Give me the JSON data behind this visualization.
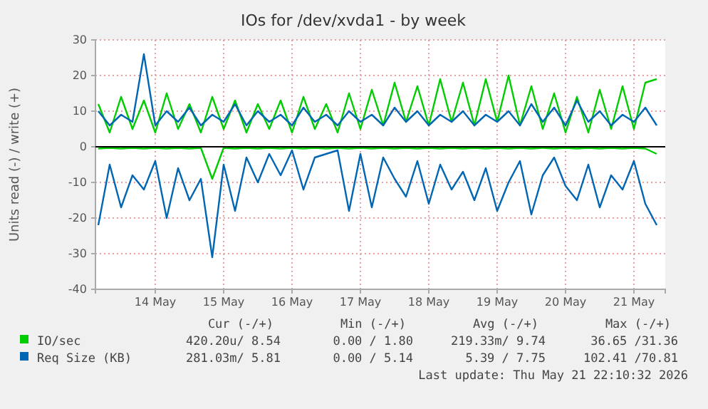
{
  "chart_data": {
    "type": "line",
    "title": "IOs for /dev/xvda1 - by week",
    "ylabel": "Units read (-) / write (+)",
    "x": [
      "2026-05-13T16:00",
      "2026-05-13T20:00",
      "2026-05-14T00:00",
      "2026-05-14T04:00",
      "2026-05-14T08:00",
      "2026-05-14T12:00",
      "2026-05-14T16:00",
      "2026-05-14T20:00",
      "2026-05-15T00:00",
      "2026-05-15T04:00",
      "2026-05-15T08:00",
      "2026-05-15T12:00",
      "2026-05-15T16:00",
      "2026-05-15T20:00",
      "2026-05-16T00:00",
      "2026-05-16T04:00",
      "2026-05-16T08:00",
      "2026-05-16T12:00",
      "2026-05-16T16:00",
      "2026-05-16T20:00",
      "2026-05-17T00:00",
      "2026-05-17T04:00",
      "2026-05-17T08:00",
      "2026-05-17T12:00",
      "2026-05-17T16:00",
      "2026-05-17T20:00",
      "2026-05-18T00:00",
      "2026-05-18T04:00",
      "2026-05-18T08:00",
      "2026-05-18T12:00",
      "2026-05-18T16:00",
      "2026-05-18T20:00",
      "2026-05-19T00:00",
      "2026-05-19T04:00",
      "2026-05-19T08:00",
      "2026-05-19T12:00",
      "2026-05-19T16:00",
      "2026-05-19T20:00",
      "2026-05-20T00:00",
      "2026-05-20T04:00",
      "2026-05-20T08:00",
      "2026-05-20T12:00",
      "2026-05-20T16:00",
      "2026-05-20T20:00",
      "2026-05-21T00:00",
      "2026-05-21T04:00",
      "2026-05-21T08:00",
      "2026-05-21T12:00",
      "2026-05-21T16:00",
      "2026-05-21T20:00"
    ],
    "series": [
      {
        "name": "IO/sec",
        "color": "#00cc00",
        "values": [
          12,
          4,
          14,
          5,
          13,
          4,
          15,
          5,
          12,
          4,
          14,
          5,
          13,
          4,
          12,
          5,
          13,
          4,
          14,
          5,
          12,
          4,
          15,
          5,
          16,
          6,
          18,
          7,
          17,
          6,
          19,
          7,
          18,
          6,
          19,
          7,
          20,
          6,
          17,
          5,
          15,
          4,
          14,
          4,
          16,
          5,
          17,
          5,
          18,
          19
        ]
      },
      {
        "color": "#00cc00",
        "values": [
          -0.5,
          -0.3,
          -0.5,
          -0.3,
          -0.5,
          -0.3,
          -0.5,
          -0.3,
          -0.5,
          -0.3,
          -9,
          -0.3,
          -0.5,
          -0.3,
          -0.5,
          -0.3,
          -0.5,
          -0.3,
          -0.5,
          -0.3,
          -0.5,
          -0.3,
          -0.5,
          -0.3,
          -0.5,
          -0.3,
          -0.5,
          -0.3,
          -0.5,
          -0.3,
          -0.5,
          -0.3,
          -0.5,
          -0.3,
          -0.5,
          -0.3,
          -0.5,
          -0.3,
          -0.5,
          -0.3,
          -0.5,
          -0.3,
          -0.5,
          -0.3,
          -0.5,
          -0.3,
          -0.5,
          -0.3,
          -0.5,
          -2
        ]
      },
      {
        "name": "Req Size (KB)",
        "color": "#0066b3",
        "values": [
          10,
          6,
          9,
          7,
          26,
          6,
          10,
          7,
          11,
          6,
          9,
          7,
          12,
          6,
          10,
          7,
          9,
          6,
          11,
          7,
          9,
          6,
          10,
          7,
          9,
          6,
          11,
          7,
          10,
          6,
          9,
          7,
          10,
          6,
          9,
          7,
          10,
          6,
          12,
          7,
          11,
          6,
          13,
          7,
          10,
          6,
          9,
          7,
          11,
          6
        ]
      },
      {
        "color": "#0066b3",
        "values": [
          -22,
          -5,
          -17,
          -8,
          -12,
          -4,
          -20,
          -6,
          -15,
          -9,
          -31,
          -5,
          -18,
          -3,
          -10,
          -2,
          -8,
          -1,
          -12,
          -3,
          -2,
          -1,
          -18,
          -2,
          -17,
          -3,
          -9,
          -14,
          -4,
          -16,
          -5,
          -12,
          -7,
          -15,
          -6,
          -18,
          -10,
          -4,
          -19,
          -8,
          -3,
          -11,
          -15,
          -5,
          -17,
          -8,
          -12,
          -4,
          -16,
          -22
        ]
      }
    ],
    "xlim": [
      "2026-05-13T15:00",
      "2026-05-21T23:00"
    ],
    "xticks": [
      {
        "value": "2026-05-14T12:00",
        "label": "14 May"
      },
      {
        "value": "2026-05-15T12:00",
        "label": "15 May"
      },
      {
        "value": "2026-05-16T12:00",
        "label": "16 May"
      },
      {
        "value": "2026-05-17T12:00",
        "label": "17 May"
      },
      {
        "value": "2026-05-18T12:00",
        "label": "18 May"
      },
      {
        "value": "2026-05-19T12:00",
        "label": "19 May"
      },
      {
        "value": "2026-05-20T12:00",
        "label": "20 May"
      },
      {
        "value": "2026-05-21T12:00",
        "label": "21 May"
      }
    ],
    "ylim": [
      -40,
      30
    ],
    "yticks": [
      -40,
      -30,
      -20,
      -10,
      0,
      10,
      20,
      30
    ],
    "ref_lines": [
      {
        "axis": "y",
        "value": 0,
        "color": "#000000"
      }
    ],
    "grid": true,
    "legend": "bottom",
    "marker": "none",
    "line_style": "solid",
    "annotations": [
      "Cur (-/+)",
      "Min (-/+)",
      "Avg (-/+)",
      "Max (-/+)",
      "420.20u/ 8.54",
      "0.00 / 1.80",
      "219.33m/ 9.74",
      "36.65 /31.36",
      "281.03m/ 5.81",
      "0.00 / 5.14",
      "5.39 / 7.75",
      "102.41 /70.81",
      "Last update: Thu May 21 22:10:32 2026"
    ]
  }
}
